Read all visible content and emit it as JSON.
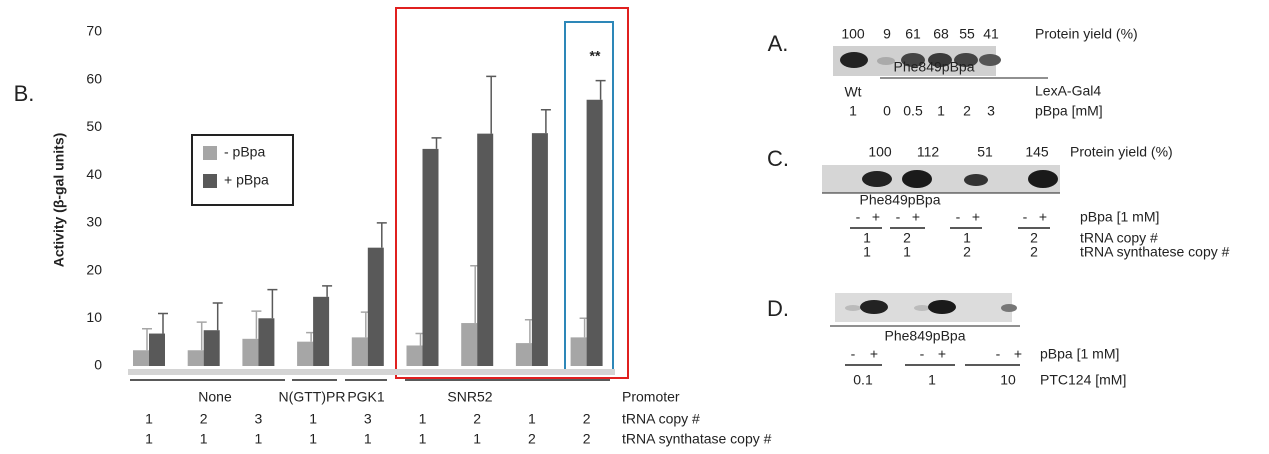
{
  "chart_data": {
    "type": "bar",
    "panel_label": "B.",
    "y_label": "Activity (β-gal units)",
    "ylim": [
      0,
      70
    ],
    "yticks": [
      0,
      10,
      20,
      30,
      40,
      50,
      60,
      70
    ],
    "series": [
      {
        "name": "- pBpa",
        "color": "#a6a6a6",
        "values": [
          3.3,
          3.3,
          5.7,
          5.1,
          6.0,
          4.3,
          9.0,
          4.8,
          6.0
        ],
        "errors": [
          4.5,
          5.9,
          5.8,
          1.9,
          5.3,
          2.5,
          12,
          4.9,
          4
        ]
      },
      {
        "name": "+ pBpa",
        "color": "#595959",
        "values": [
          6.8,
          7.5,
          10,
          14.5,
          24.8,
          45.5,
          48.7,
          48.8,
          55.8
        ],
        "errors": [
          4.2,
          5.7,
          6,
          2.3,
          5.2,
          2.3,
          12,
          4.9,
          4
        ]
      }
    ],
    "annotation": "**",
    "promoters": [
      "None",
      "N(GTT)PR",
      "PGK1",
      "SNR52"
    ],
    "promoter_label": "Promoter",
    "trna_copy": [
      1,
      2,
      3,
      1,
      3,
      1,
      2,
      1,
      2
    ],
    "trna_copy_label": "tRNA copy #",
    "synthetase_copy": [
      1,
      1,
      1,
      1,
      1,
      1,
      1,
      2,
      2
    ],
    "synthetase_copy_label": "tRNA synthatase copy #"
  },
  "panels": {
    "A": {
      "label": "A.",
      "yields": [
        100,
        9,
        61,
        68,
        55,
        41
      ],
      "yield_label": "Protein yield (%)",
      "wt": "Wt",
      "construct": "Phe849pBpa",
      "reporter": "LexA-Gal4",
      "pbpa": [
        1,
        0,
        0.5,
        1,
        2,
        3
      ],
      "pbpa_label": "pBpa  [mM]"
    },
    "C": {
      "label": "C.",
      "yields": [
        100,
        112,
        51,
        145
      ],
      "yield_label": "Protein  yield (%)",
      "construct": "Phe849pBpa",
      "signs": [
        "-",
        "+",
        "-",
        "+",
        "-",
        "+",
        "-",
        "+"
      ],
      "pbpa_label": "pBpa [1 mM]",
      "trna_copy": [
        1,
        2,
        1,
        2
      ],
      "trna_copy_label": "tRNA copy #",
      "synthetase_copy": [
        1,
        1,
        2,
        2
      ],
      "synthetase_copy_label": "tRNA synthatese copy #"
    },
    "D": {
      "label": "D.",
      "construct": "Phe849pBpa",
      "signs": [
        "-",
        "+",
        "-",
        "+",
        "-",
        "+"
      ],
      "pbpa_label": "pBpa [1 mM]",
      "ptc124": [
        0.1,
        1,
        10
      ],
      "ptc124_label": "PTC124 [mM]"
    }
  }
}
